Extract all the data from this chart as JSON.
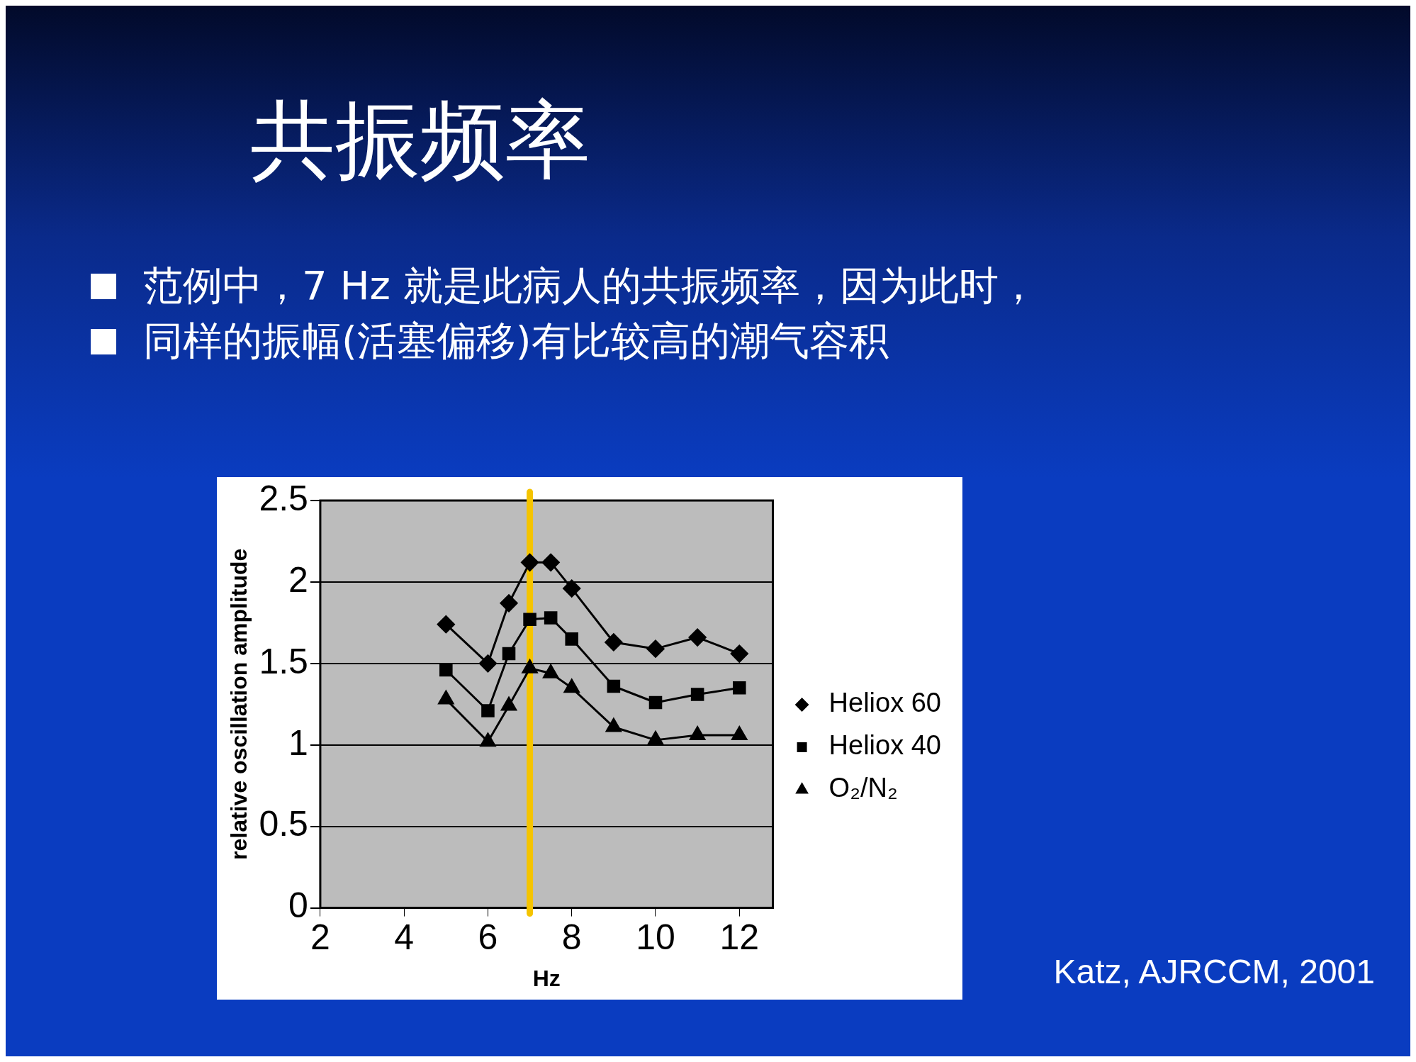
{
  "chart_data": {
    "type": "line",
    "title": "共振频率",
    "xlabel": "Hz",
    "ylabel": "relative oscillation amplitude",
    "x": [
      5,
      6,
      6.5,
      7,
      7.5,
      8,
      9,
      10,
      11,
      12
    ],
    "series": [
      {
        "name": "Heliox 60",
        "color": "#000000",
        "marker": "diamond",
        "values": [
          1.74,
          1.5,
          1.87,
          2.12,
          2.12,
          1.96,
          1.63,
          1.59,
          1.66,
          1.56
        ]
      },
      {
        "name": "Heliox 40",
        "color": "#000000",
        "marker": "square",
        "values": [
          1.46,
          1.21,
          1.56,
          1.77,
          1.78,
          1.65,
          1.36,
          1.26,
          1.31,
          1.35
        ]
      },
      {
        "name": "O₂/N₂",
        "color": "#000000",
        "marker": "triangle",
        "values": [
          1.28,
          1.02,
          1.24,
          1.47,
          1.44,
          1.35,
          1.11,
          1.03,
          1.06,
          1.06
        ]
      }
    ],
    "xlim": [
      2,
      12.8
    ],
    "xticks": [
      2,
      4,
      6,
      8,
      10,
      12
    ],
    "ylim": [
      0,
      2.5
    ],
    "yticks": [
      0,
      0.5,
      1,
      1.5,
      2,
      2.5
    ],
    "grid": "y",
    "legend": "right",
    "line_style": "solid",
    "ref_lines": [
      {
        "axis": "x",
        "value": 7,
        "color": "#f5c400"
      }
    ],
    "annotations": [
      "范例中，7 Hz 就是此病人的共振频率，因为此时，",
      "同样的振幅(活塞偏移)有比较高的潮气容积",
      "Katz, AJRCCM, 2001"
    ]
  }
}
